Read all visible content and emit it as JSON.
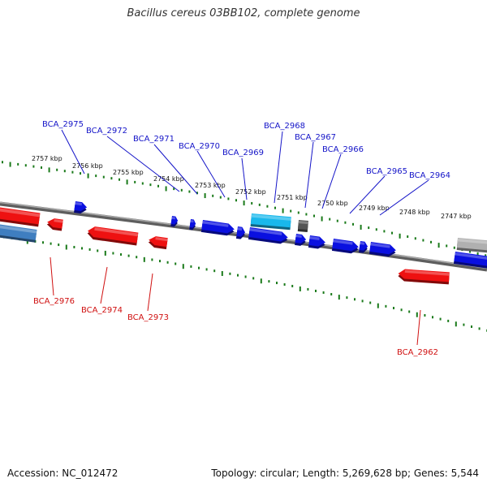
{
  "title": "Bacillus cereus 03BB102, complete genome",
  "footer": {
    "accession": "Accession: NC_012472",
    "summary": "Topology: circular; Length: 5,269,628 bp; Genes: 5,544"
  },
  "colors": {
    "forward_gene": "#0a10e0",
    "reverse_gene": "#ee1111",
    "rna_gene": "#19b8ec",
    "pseudo_gene": "#555555",
    "grey_gene": "#b0b0b0",
    "steel_gene": "#3f7ec0",
    "backbone": "#7a7a7a",
    "tick": "#1a7a1a",
    "forward_label": "#1414c8",
    "reverse_label": "#d01010"
  },
  "scale_labels": [
    "2757 kbp",
    "2756 kbp",
    "2755 kbp",
    "2754 kbp",
    "2753 kbp",
    "2752 kbp",
    "2751 kbp",
    "2750 kbp",
    "2749 kbp",
    "2748 kbp",
    "2747 kbp"
  ],
  "forward_gene_labels": [
    "BCA_2975",
    "BCA_2972",
    "BCA_2971",
    "BCA_2970",
    "BCA_2969",
    "BCA_2968",
    "BCA_2967",
    "BCA_2966",
    "BCA_2965",
    "BCA_2964"
  ],
  "reverse_gene_labels": [
    "BCA_2976",
    "BCA_2974",
    "BCA_2973",
    "BCA_2962"
  ]
}
